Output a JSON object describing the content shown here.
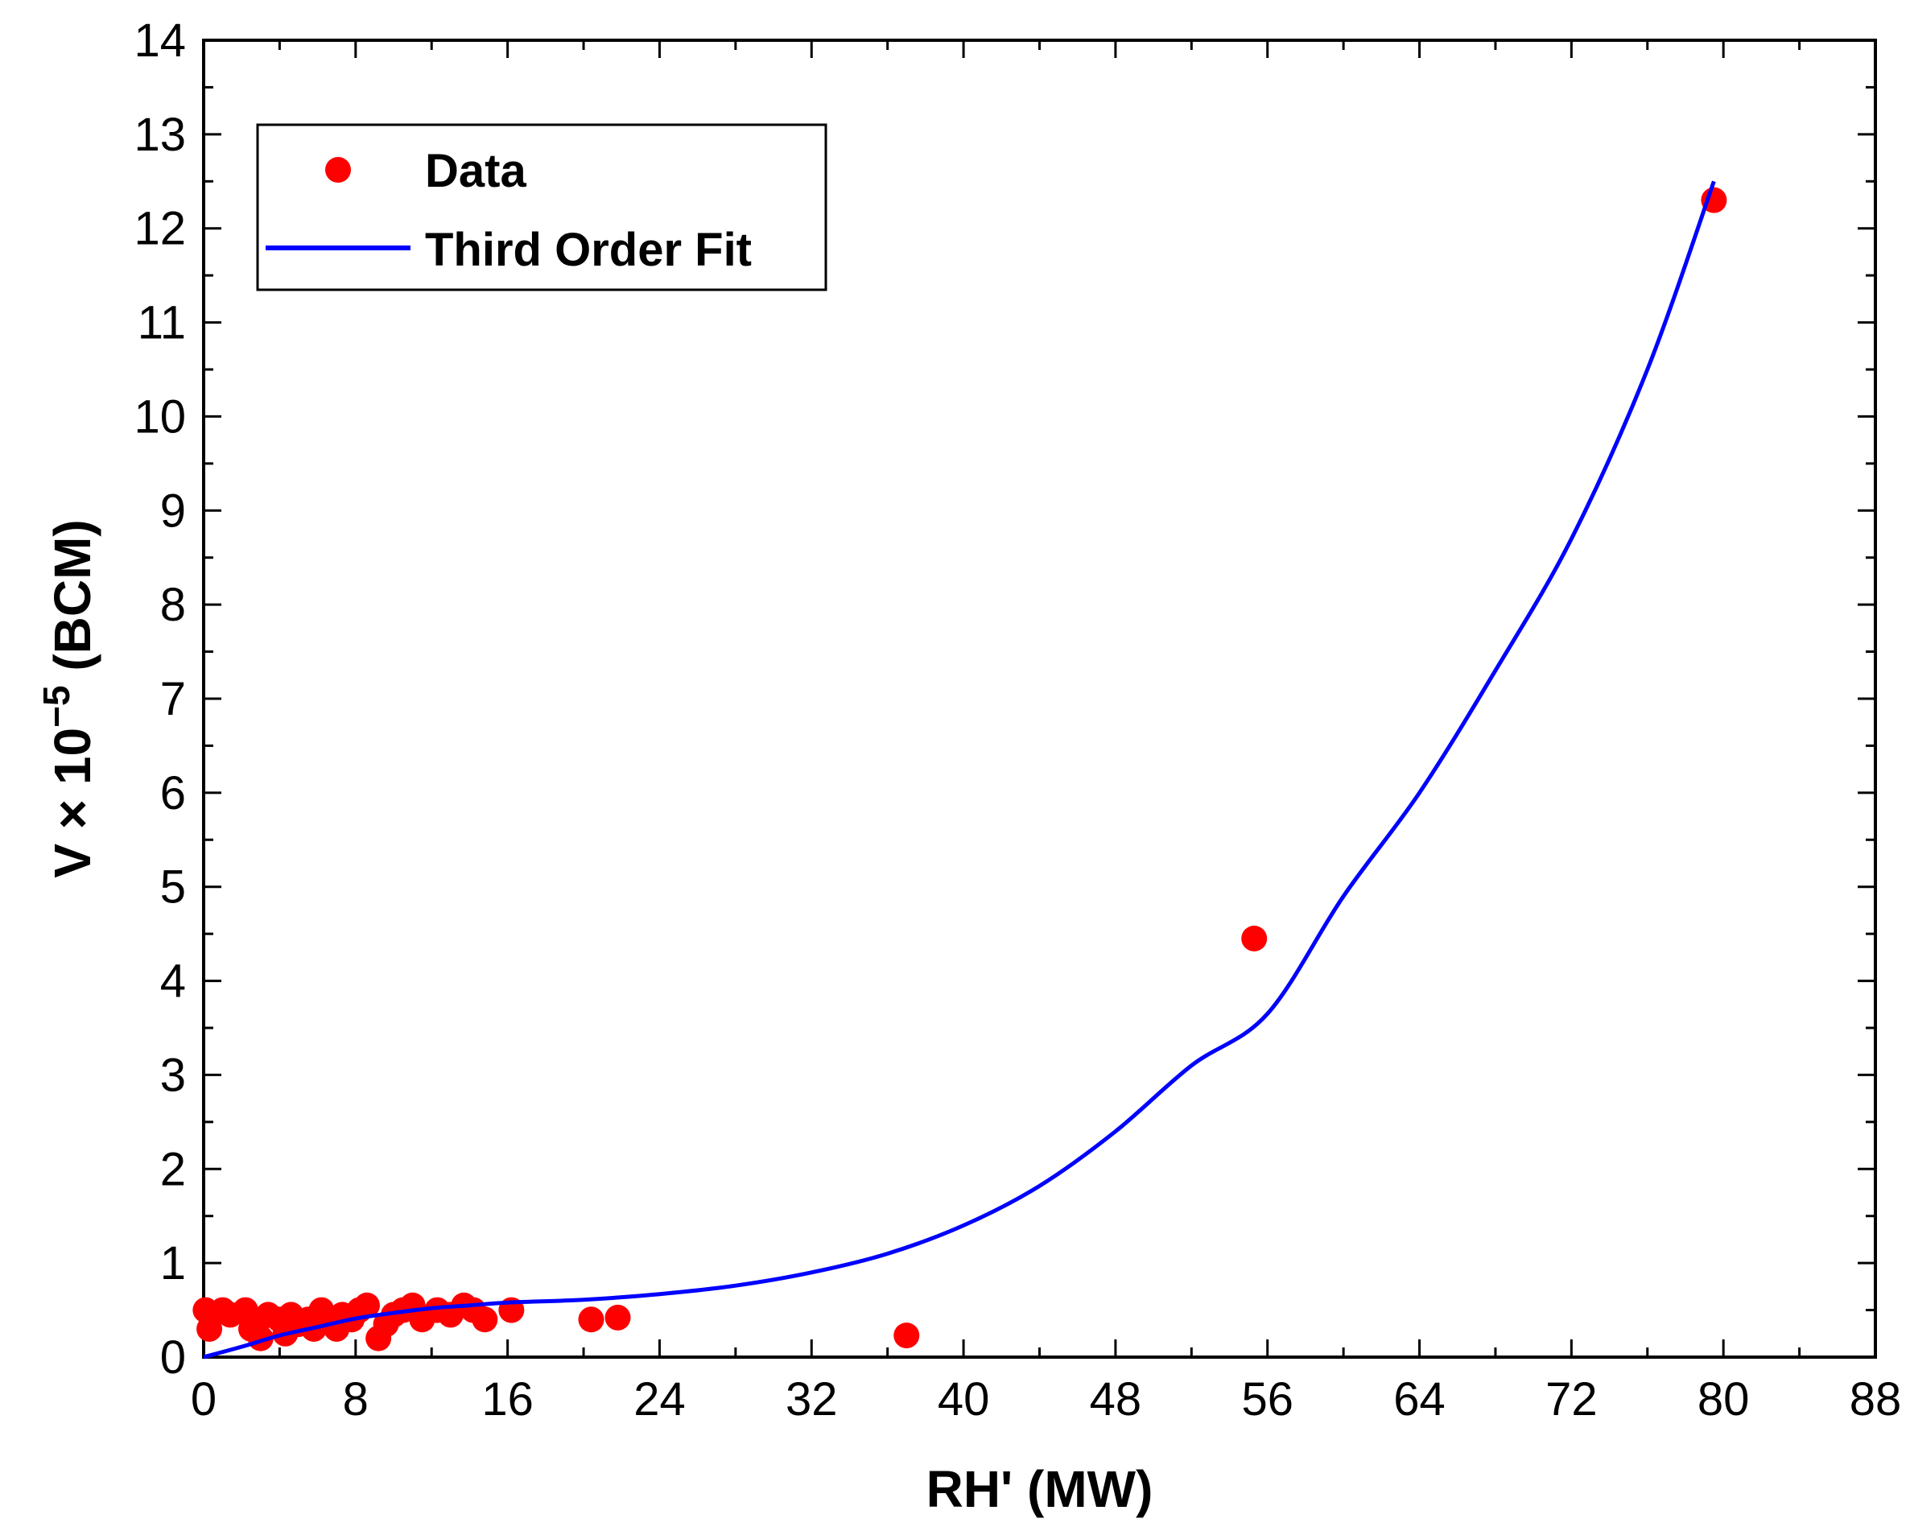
{
  "chart_data": {
    "type": "scatter",
    "title": "",
    "xlabel": "RH' (MW)",
    "ylabel_main": "V × 10",
    "ylabel_exponent": "−5",
    "ylabel_unit": " (BCM)",
    "xlim": [
      0,
      88
    ],
    "ylim": [
      0,
      14
    ],
    "x_ticks": [
      0,
      8,
      16,
      24,
      32,
      40,
      48,
      56,
      64,
      72,
      80,
      88
    ],
    "x_tick_labels": [
      "0",
      "8",
      "16",
      "24",
      "32",
      "40",
      "48",
      "56",
      "64",
      "72",
      "80",
      "88"
    ],
    "y_ticks": [
      0,
      1,
      2,
      3,
      4,
      5,
      6,
      7,
      8,
      9,
      10,
      11,
      12,
      13,
      14
    ],
    "y_tick_labels": [
      "0",
      "1",
      "2",
      "3",
      "4",
      "5",
      "6",
      "7",
      "8",
      "9",
      "10",
      "11",
      "12",
      "13",
      "14"
    ],
    "grid": false,
    "legend_position": "top-left",
    "series": [
      {
        "name": "Data",
        "kind": "scatter",
        "color": "#ff0000",
        "points": [
          [
            0.1,
            0.5
          ],
          [
            0.3,
            0.3
          ],
          [
            0.5,
            0.45
          ],
          [
            1.0,
            0.5
          ],
          [
            1.4,
            0.45
          ],
          [
            2.2,
            0.5
          ],
          [
            2.5,
            0.3
          ],
          [
            2.8,
            0.35
          ],
          [
            3.0,
            0.2
          ],
          [
            3.4,
            0.45
          ],
          [
            4.0,
            0.4
          ],
          [
            4.3,
            0.25
          ],
          [
            4.6,
            0.45
          ],
          [
            5.0,
            0.35
          ],
          [
            5.5,
            0.4
          ],
          [
            5.8,
            0.3
          ],
          [
            6.2,
            0.5
          ],
          [
            6.5,
            0.4
          ],
          [
            7.0,
            0.3
          ],
          [
            7.3,
            0.45
          ],
          [
            7.8,
            0.4
          ],
          [
            8.2,
            0.5
          ],
          [
            8.6,
            0.55
          ],
          [
            9.2,
            0.2
          ],
          [
            9.6,
            0.35
          ],
          [
            10.0,
            0.45
          ],
          [
            10.5,
            0.5
          ],
          [
            11.0,
            0.55
          ],
          [
            11.5,
            0.4
          ],
          [
            12.3,
            0.5
          ],
          [
            13.0,
            0.45
          ],
          [
            13.7,
            0.55
          ],
          [
            14.2,
            0.5
          ],
          [
            14.8,
            0.4
          ],
          [
            16.2,
            0.5
          ],
          [
            20.4,
            0.4
          ],
          [
            21.8,
            0.42
          ],
          [
            37.0,
            0.23
          ],
          [
            55.3,
            4.45
          ],
          [
            79.5,
            12.3
          ]
        ]
      },
      {
        "name": "Third Order Fit",
        "kind": "line",
        "color": "#0000ff",
        "points": [
          [
            0,
            0.0
          ],
          [
            2,
            0.11
          ],
          [
            4,
            0.23
          ],
          [
            6,
            0.32
          ],
          [
            8,
            0.41
          ],
          [
            10,
            0.47
          ],
          [
            12,
            0.52
          ],
          [
            14,
            0.55
          ],
          [
            16,
            0.58
          ],
          [
            20,
            0.61
          ],
          [
            24,
            0.67
          ],
          [
            28,
            0.76
          ],
          [
            32,
            0.9
          ],
          [
            36,
            1.1
          ],
          [
            40,
            1.4
          ],
          [
            44,
            1.82
          ],
          [
            48,
            2.4
          ],
          [
            52,
            3.1
          ],
          [
            56,
            3.65
          ],
          [
            60,
            4.9
          ],
          [
            64,
            6.0
          ],
          [
            68,
            7.3
          ],
          [
            72,
            8.7
          ],
          [
            76,
            10.5
          ],
          [
            79.5,
            12.5
          ]
        ]
      }
    ]
  }
}
